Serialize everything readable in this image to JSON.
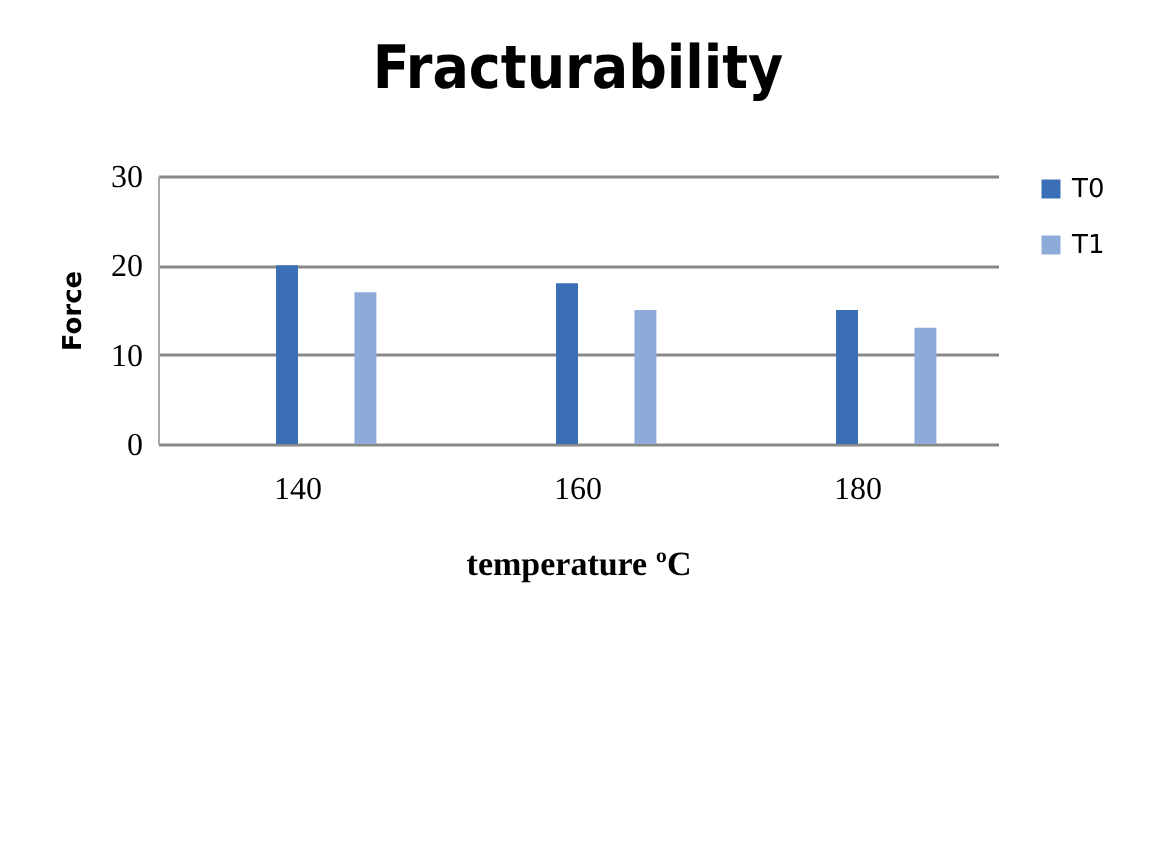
{
  "chart_data": {
    "type": "bar",
    "title": "Fracturability",
    "xlabel": "temperature ºC",
    "ylabel": "Force",
    "categories": [
      "140",
      "160",
      "180"
    ],
    "series": [
      {
        "name": "T0",
        "color": "#3a6fb5",
        "values": [
          20,
          18,
          15
        ]
      },
      {
        "name": "T1",
        "color": "#8eaadb",
        "values": [
          17,
          15,
          13
        ]
      }
    ],
    "ylim": [
      0,
      30
    ],
    "yticks": [
      0,
      10,
      20,
      30
    ],
    "grid": "y",
    "legend": "right"
  }
}
